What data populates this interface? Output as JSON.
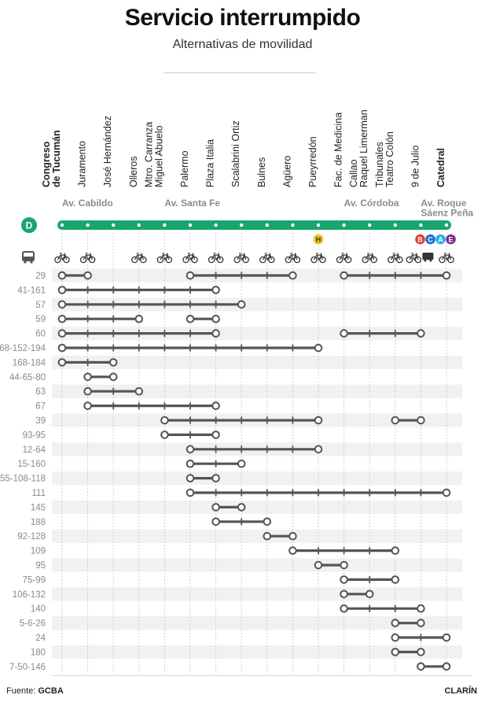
{
  "title": "Servicio interrumpido",
  "subtitle": "Alternativas de movilidad",
  "footer": {
    "source_label": "Fuente:",
    "source_value": "GCBA",
    "brand": "CLARÍN"
  },
  "line": {
    "name": "D",
    "color": "#1aa56e"
  },
  "stations": [
    {
      "label": [
        "Congreso",
        "de Tucumán"
      ],
      "bold": true
    },
    {
      "label": [
        "Juramento"
      ],
      "bold": false
    },
    {
      "label": [
        "José Hernández"
      ],
      "bold": false
    },
    {
      "label": [
        "Olleros"
      ],
      "bold": false
    },
    {
      "label": [
        "Mtro. Carranza",
        "Miguel Abuelo"
      ],
      "bold": false
    },
    {
      "label": [
        "Palermo"
      ],
      "bold": false
    },
    {
      "label": [
        "Plaza Italia"
      ],
      "bold": false
    },
    {
      "label": [
        "Scalabrini Ortiz"
      ],
      "bold": false
    },
    {
      "label": [
        "Bulnes"
      ],
      "bold": false
    },
    {
      "label": [
        "Agüero"
      ],
      "bold": false
    },
    {
      "label": [
        "Pueyrredón"
      ],
      "bold": false
    },
    {
      "label": [
        "Fac. de Medicina"
      ],
      "bold": false
    },
    {
      "label": [
        "Callao",
        "Raquel Limerman"
      ],
      "bold": false
    },
    {
      "label": [
        "Tribunales",
        "Teatro Colón"
      ],
      "bold": false
    },
    {
      "label": [
        "9 de Julio"
      ],
      "bold": false
    },
    {
      "label": [
        "Catedral"
      ],
      "bold": true
    }
  ],
  "avenues": [
    {
      "label": [
        "Av. Cabildo"
      ],
      "station": 0
    },
    {
      "label": [
        "Av. Santa Fe"
      ],
      "station": 4
    },
    {
      "label": [
        "Av. Córdoba"
      ],
      "station": 11
    },
    {
      "label": [
        "Av. Roque",
        "Sáenz Peña"
      ],
      "station": 14
    }
  ],
  "connections": [
    {
      "station": 10,
      "lines": [
        {
          "name": "H",
          "color": "#f2c315"
        }
      ]
    },
    {
      "station": 15,
      "lines": [
        {
          "name": "B",
          "color": "#e53935"
        },
        {
          "name": "C",
          "color": "#1e6fcf"
        },
        {
          "name": "A",
          "color": "#23b3e8"
        },
        {
          "name": "E",
          "color": "#7b2f8e"
        }
      ]
    }
  ],
  "icons": {
    "bus_row_icon": "bus-icon",
    "bike_stations": [
      0,
      1,
      3,
      4,
      5,
      6,
      7,
      8,
      9,
      10,
      11,
      12,
      13,
      14,
      15
    ],
    "metrobus_station": 14
  },
  "bus_lines": [
    {
      "name": "29",
      "segments": [
        [
          0,
          1
        ],
        [
          5,
          9
        ],
        [
          11,
          15
        ]
      ]
    },
    {
      "name": "41-161",
      "segments": [
        [
          0,
          6
        ]
      ]
    },
    {
      "name": "57",
      "segments": [
        [
          0,
          7
        ]
      ]
    },
    {
      "name": "59",
      "segments": [
        [
          0,
          3
        ],
        [
          5,
          6
        ]
      ]
    },
    {
      "name": "60",
      "segments": [
        [
          0,
          6
        ],
        [
          11,
          14
        ]
      ]
    },
    {
      "name": "68-152-194",
      "segments": [
        [
          0,
          10
        ]
      ]
    },
    {
      "name": "168-184",
      "segments": [
        [
          0,
          2
        ]
      ]
    },
    {
      "name": "44-65-80",
      "segments": [
        [
          1,
          2
        ]
      ]
    },
    {
      "name": "63",
      "segments": [
        [
          1,
          3
        ]
      ]
    },
    {
      "name": "67",
      "segments": [
        [
          1,
          6
        ]
      ]
    },
    {
      "name": "39",
      "segments": [
        [
          4,
          10
        ],
        [
          13,
          14
        ]
      ]
    },
    {
      "name": "93-95",
      "segments": [
        [
          4,
          6
        ]
      ]
    },
    {
      "name": "12-64",
      "segments": [
        [
          5,
          10
        ]
      ]
    },
    {
      "name": "15-160",
      "segments": [
        [
          5,
          7
        ]
      ]
    },
    {
      "name": "55-108-118",
      "segments": [
        [
          5,
          6
        ]
      ]
    },
    {
      "name": "111",
      "segments": [
        [
          5,
          15
        ]
      ]
    },
    {
      "name": "145",
      "segments": [
        [
          6,
          7
        ]
      ]
    },
    {
      "name": "188",
      "segments": [
        [
          6,
          8
        ]
      ]
    },
    {
      "name": "92-128",
      "segments": [
        [
          8,
          9
        ]
      ]
    },
    {
      "name": "109",
      "segments": [
        [
          9,
          13
        ]
      ]
    },
    {
      "name": "95",
      "segments": [
        [
          10,
          11
        ]
      ]
    },
    {
      "name": "75-99",
      "segments": [
        [
          11,
          13
        ]
      ]
    },
    {
      "name": "106-132",
      "segments": [
        [
          11,
          12
        ]
      ]
    },
    {
      "name": "140",
      "segments": [
        [
          11,
          14
        ]
      ]
    },
    {
      "name": "5-6-26",
      "segments": [
        [
          13,
          14
        ]
      ]
    },
    {
      "name": "24",
      "segments": [
        [
          13,
          15
        ]
      ]
    },
    {
      "name": "180",
      "segments": [
        [
          13,
          14
        ]
      ]
    },
    {
      "name": "7-50-146",
      "segments": [
        [
          14,
          15
        ]
      ]
    }
  ]
}
